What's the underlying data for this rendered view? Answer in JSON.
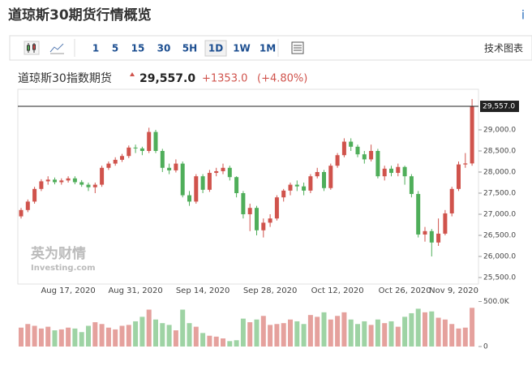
{
  "header": {
    "title": "道琼斯30期货行情概览",
    "info": "i"
  },
  "toolbar": {
    "intervals": [
      "1",
      "5",
      "15",
      "30",
      "5H",
      "1D",
      "1W",
      "1M"
    ],
    "selected": "1D",
    "technical": "技术图表"
  },
  "quote": {
    "name": "道琼斯30指数期货",
    "price": "29,557.0",
    "change": "+1353.0",
    "change_pct": "(+4.80%)"
  },
  "chart_data": {
    "type": "candlestick",
    "categories": [
      null,
      null,
      null,
      null,
      null,
      null,
      null,
      "Aug 17, 2020",
      null,
      null,
      null,
      null,
      null,
      null,
      null,
      null,
      null,
      "Aug 31, 2020",
      null,
      null,
      null,
      null,
      null,
      null,
      null,
      null,
      null,
      "Sep 14, 2020",
      null,
      null,
      null,
      null,
      null,
      null,
      null,
      null,
      null,
      "Sep 28, 2020",
      null,
      null,
      null,
      null,
      null,
      null,
      null,
      null,
      null,
      "Oct 12, 2020",
      null,
      null,
      null,
      null,
      null,
      null,
      null,
      null,
      null,
      "Oct 26, 2020",
      null,
      null,
      null,
      null,
      null,
      null,
      null,
      null,
      null,
      "Nov 9, 2020"
    ],
    "open": [
      26950,
      27100,
      27300,
      27600,
      27780,
      27820,
      27760,
      27800,
      27850,
      27760,
      27700,
      27640,
      27700,
      28100,
      28200,
      28290,
      28380,
      28580,
      28560,
      28500,
      28950,
      28500,
      28100,
      28040,
      28200,
      27450,
      27300,
      27900,
      27580,
      27980,
      28020,
      28100,
      27880,
      27500,
      27000,
      27150,
      26620,
      26800,
      26900,
      27400,
      27560,
      27700,
      27660,
      27560,
      27900,
      28000,
      27620,
      28150,
      28400,
      28720,
      28600,
      28420,
      28300,
      28500,
      27900,
      28080,
      27980,
      28120,
      27900,
      27480,
      26520,
      26600,
      26330,
      26540,
      27020,
      27600,
      28180,
      28204
    ],
    "high": [
      27150,
      27350,
      27650,
      27830,
      27900,
      27870,
      27850,
      27900,
      27900,
      27810,
      27750,
      27750,
      28150,
      28250,
      28350,
      28430,
      28630,
      28650,
      28600,
      29050,
      29000,
      28550,
      28200,
      28300,
      28250,
      27550,
      27950,
      27950,
      28050,
      28100,
      28200,
      28150,
      27900,
      27550,
      27250,
      27200,
      26900,
      27000,
      27450,
      27600,
      27750,
      27800,
      27750,
      27950,
      28100,
      28050,
      28200,
      28450,
      28800,
      28800,
      28650,
      28500,
      28650,
      28550,
      28150,
      28150,
      28200,
      28150,
      27950,
      27550,
      26700,
      26650,
      26900,
      27100,
      27650,
      28250,
      28450,
      29730
    ],
    "low": [
      26900,
      27050,
      27250,
      27550,
      27700,
      27710,
      27700,
      27750,
      27710,
      27650,
      27550,
      27500,
      27650,
      28050,
      28150,
      28240,
      28330,
      28450,
      28400,
      28450,
      28450,
      28000,
      27950,
      27990,
      27400,
      27200,
      27250,
      27500,
      27530,
      27900,
      27950,
      27800,
      27400,
      26900,
      26600,
      26500,
      26450,
      26700,
      26850,
      27300,
      27450,
      27550,
      27450,
      27500,
      27850,
      27550,
      27580,
      28100,
      28350,
      28500,
      28350,
      28200,
      28250,
      27850,
      27800,
      27900,
      27900,
      27700,
      27400,
      26450,
      26350,
      26000,
      26250,
      26500,
      26950,
      27550,
      28100,
      28150
    ],
    "close": [
      27100,
      27300,
      27600,
      27780,
      27820,
      27760,
      27800,
      27850,
      27760,
      27700,
      27640,
      27700,
      28100,
      28200,
      28290,
      28380,
      28580,
      28560,
      28500,
      28950,
      28500,
      28100,
      28040,
      28200,
      27450,
      27300,
      27900,
      27580,
      27980,
      28020,
      28100,
      27880,
      27500,
      27000,
      27150,
      26620,
      26800,
      26900,
      27400,
      27560,
      27700,
      27660,
      27560,
      27900,
      28000,
      27620,
      28150,
      28400,
      28720,
      28600,
      28420,
      28300,
      28500,
      27900,
      28080,
      27980,
      28120,
      27900,
      27480,
      26520,
      26600,
      26330,
      26540,
      27020,
      27600,
      28180,
      28204,
      29557
    ],
    "volume": [
      210000,
      250000,
      230000,
      200000,
      220000,
      180000,
      190000,
      210000,
      200000,
      160000,
      230000,
      270000,
      250000,
      210000,
      190000,
      230000,
      240000,
      280000,
      330000,
      410000,
      300000,
      260000,
      240000,
      180000,
      410000,
      260000,
      220000,
      150000,
      120000,
      110000,
      90000,
      60000,
      70000,
      310000,
      270000,
      300000,
      340000,
      240000,
      250000,
      260000,
      300000,
      280000,
      250000,
      350000,
      330000,
      380000,
      300000,
      340000,
      380000,
      300000,
      250000,
      280000,
      240000,
      300000,
      260000,
      280000,
      220000,
      330000,
      370000,
      420000,
      380000,
      390000,
      320000,
      300000,
      250000,
      200000,
      210000,
      430000
    ],
    "up_color": "#d0534c",
    "down_color": "#4fae5a",
    "ylim": [
      25350,
      29950
    ],
    "yticks": [
      {
        "value": 25500,
        "label": "25,500.0"
      },
      {
        "value": 26000,
        "label": "26,000.0"
      },
      {
        "value": 26500,
        "label": "26,500.0"
      },
      {
        "value": 27000,
        "label": "27,000.0"
      },
      {
        "value": 27500,
        "label": "27,500.0"
      },
      {
        "value": 28000,
        "label": "28,000.0"
      },
      {
        "value": 28500,
        "label": "28,500.0"
      },
      {
        "value": 29000,
        "label": "29,000.0"
      }
    ],
    "vol_lim": [
      0,
      550000
    ],
    "vol_ticks": [
      {
        "value": 500000,
        "label": "500.0K"
      },
      0
    ],
    "last_price": {
      "value": 29557,
      "label": "29,557.0"
    },
    "watermark": [
      "英为财情",
      "Investing.com"
    ]
  }
}
